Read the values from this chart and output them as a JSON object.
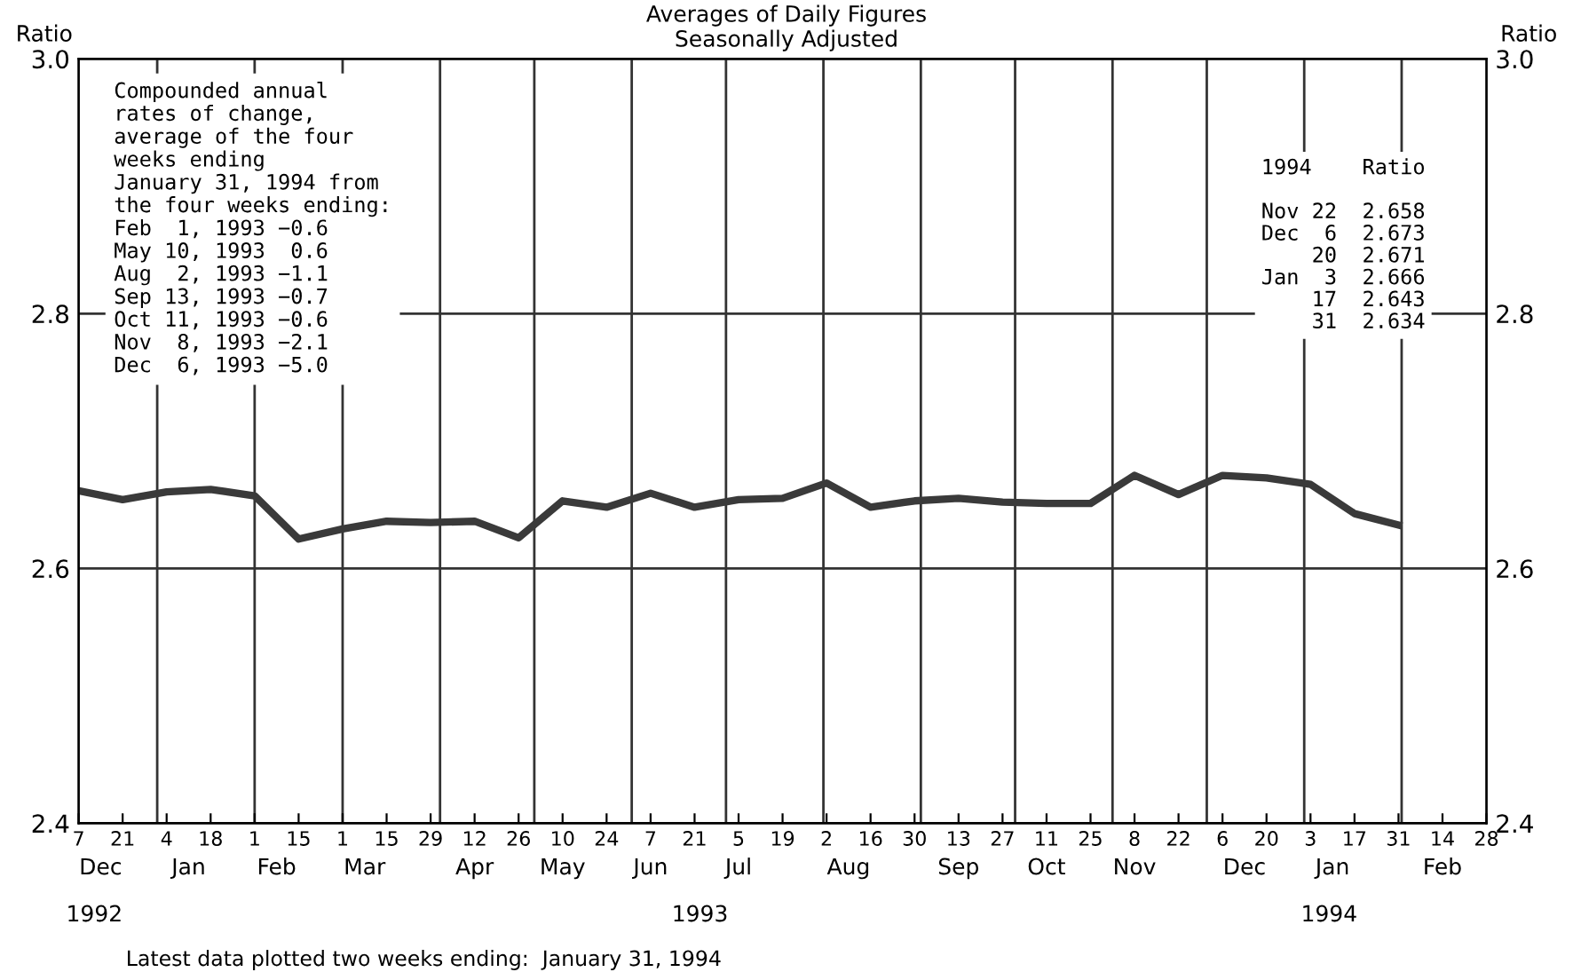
{
  "chart_data": {
    "type": "line",
    "title": "Averages of Daily Figures\nSeasonally Adjusted",
    "ylabel": "Ratio",
    "y2label": "Ratio",
    "x": [
      "1992-12-07",
      "1992-12-21",
      "1993-01-04",
      "1993-01-18",
      "1993-02-01",
      "1993-02-15",
      "1993-03-01",
      "1993-03-15",
      "1993-03-29",
      "1993-04-12",
      "1993-04-26",
      "1993-05-10",
      "1993-05-24",
      "1993-06-07",
      "1993-06-21",
      "1993-07-05",
      "1993-07-19",
      "1993-08-02",
      "1993-08-16",
      "1993-08-30",
      "1993-09-13",
      "1993-09-27",
      "1993-10-11",
      "1993-10-25",
      "1993-11-08",
      "1993-11-22",
      "1993-12-06",
      "1993-12-20",
      "1994-01-03",
      "1994-01-17",
      "1994-01-31"
    ],
    "series": [
      {
        "color": "#3a3a3a",
        "values": [
          2.661,
          2.654,
          2.66,
          2.662,
          2.657,
          2.623,
          2.631,
          2.637,
          2.636,
          2.637,
          2.624,
          2.653,
          2.648,
          2.659,
          2.648,
          2.654,
          2.655,
          2.667,
          2.648,
          2.653,
          2.655,
          2.652,
          2.651,
          2.651,
          2.673,
          2.658,
          2.673,
          2.671,
          2.666,
          2.643,
          2.634
        ]
      }
    ],
    "xlim": [
      "1992-12-07",
      "1994-02-28"
    ],
    "xticks": [
      {
        "value": "1992-12-07",
        "label": "7"
      },
      {
        "value": "1992-12-21",
        "label": "21"
      },
      {
        "value": "1993-01-04",
        "label": "4"
      },
      {
        "value": "1993-01-18",
        "label": "18"
      },
      {
        "value": "1993-02-01",
        "label": "1"
      },
      {
        "value": "1993-02-15",
        "label": "15"
      },
      {
        "value": "1993-03-01",
        "label": "1"
      },
      {
        "value": "1993-03-15",
        "label": "15"
      },
      {
        "value": "1993-03-29",
        "label": "29"
      },
      {
        "value": "1993-04-12",
        "label": "12"
      },
      {
        "value": "1993-04-26",
        "label": "26"
      },
      {
        "value": "1993-05-10",
        "label": "10"
      },
      {
        "value": "1993-05-24",
        "label": "24"
      },
      {
        "value": "1993-06-07",
        "label": "7"
      },
      {
        "value": "1993-06-21",
        "label": "21"
      },
      {
        "value": "1993-07-05",
        "label": "5"
      },
      {
        "value": "1993-07-19",
        "label": "19"
      },
      {
        "value": "1993-08-02",
        "label": "2"
      },
      {
        "value": "1993-08-16",
        "label": "16"
      },
      {
        "value": "1993-08-30",
        "label": "30"
      },
      {
        "value": "1993-09-13",
        "label": "13"
      },
      {
        "value": "1993-09-27",
        "label": "27"
      },
      {
        "value": "1993-10-11",
        "label": "11"
      },
      {
        "value": "1993-10-25",
        "label": "25"
      },
      {
        "value": "1993-11-08",
        "label": "8"
      },
      {
        "value": "1993-11-22",
        "label": "22"
      },
      {
        "value": "1993-12-06",
        "label": "6"
      },
      {
        "value": "1993-12-20",
        "label": "20"
      },
      {
        "value": "1994-01-03",
        "label": "3"
      },
      {
        "value": "1994-01-17",
        "label": "17"
      },
      {
        "value": "1994-01-31",
        "label": "31"
      },
      {
        "value": "1994-02-14",
        "label": "14"
      },
      {
        "value": "1994-02-28",
        "label": "28"
      }
    ],
    "x2lim": [
      "1992-12-07",
      "1994-02-28"
    ],
    "x2ticks": [
      {
        "value": "1992-12-14",
        "label": "Dec"
      },
      {
        "value": "1993-01-11",
        "label": "Jan"
      },
      {
        "value": "1993-02-08",
        "label": "Feb"
      },
      {
        "value": "1993-03-08",
        "label": "Mar"
      },
      {
        "value": "1993-04-12",
        "label": "Apr"
      },
      {
        "value": "1993-05-10",
        "label": "May"
      },
      {
        "value": "1993-06-07",
        "label": "Jun"
      },
      {
        "value": "1993-07-05",
        "label": "Jul"
      },
      {
        "value": "1993-08-09",
        "label": "Aug"
      },
      {
        "value": "1993-09-13",
        "label": "Sep"
      },
      {
        "value": "1993-10-11",
        "label": "Oct"
      },
      {
        "value": "1993-11-08",
        "label": "Nov"
      },
      {
        "value": "1993-12-13",
        "label": "Dec"
      },
      {
        "value": "1994-01-10",
        "label": "Jan"
      },
      {
        "value": "1994-02-14",
        "label": "Feb"
      }
    ],
    "ylim": [
      2.4,
      3.0
    ],
    "yticks": [
      2.4,
      2.6,
      2.8,
      {
        "value": 3.0,
        "label": "3.0"
      }
    ],
    "y2lim": [
      2.4,
      3.0
    ],
    "y2ticks": [
      2.4,
      2.6,
      2.8,
      {
        "value": 3.0,
        "label": "3.0"
      }
    ],
    "grid": "y",
    "ref_lines": [
      {
        "axis": "x",
        "value": "1993-01-01",
        "label": null
      },
      {
        "axis": "x",
        "value": "1993-02-01",
        "label": null
      },
      {
        "axis": "x",
        "value": "1993-03-01",
        "label": null
      },
      {
        "axis": "x",
        "value": "1993-04-01",
        "label": null
      },
      {
        "axis": "x",
        "value": "1993-05-01",
        "label": null
      },
      {
        "axis": "x",
        "value": "1993-06-01",
        "label": null
      },
      {
        "axis": "x",
        "value": "1993-07-01",
        "label": null
      },
      {
        "axis": "x",
        "value": "1993-08-01",
        "label": null
      },
      {
        "axis": "x",
        "value": "1993-09-01",
        "label": null
      },
      {
        "axis": "x",
        "value": "1993-10-01",
        "label": null
      },
      {
        "axis": "x",
        "value": "1993-11-01",
        "label": null
      },
      {
        "axis": "x",
        "value": "1993-12-01",
        "label": null
      },
      {
        "axis": "x",
        "value": "1994-01-01",
        "label": null
      },
      {
        "axis": "x",
        "value": "1994-02-01",
        "label": null
      }
    ],
    "annotations": [
      "Compounded annual\nrates of change,\naverage of the four\nweeks ending\nJanuary 31, 1994 from\nthe four weeks ending:\nFeb  1, 1993 −0.6\nMay 10, 1993  0.6\nAug  2, 1993 −1.1\nSep 13, 1993 −0.7\nOct 11, 1993 −0.6\nNov  8, 1993 −2.1\nDec  6, 1993 −5.0",
      "1994    Ratio\n\nNov 22  2.658\nDec  6  2.673\n    20  2.671\nJan  3  2.666\n    17  2.643\n    31  2.634",
      "Latest data plotted two weeks ending:  January 31, 1994",
      "1992",
      "1993",
      "1994"
    ],
    "marker": "none",
    "line_style": "solid",
    "legend": false
  }
}
